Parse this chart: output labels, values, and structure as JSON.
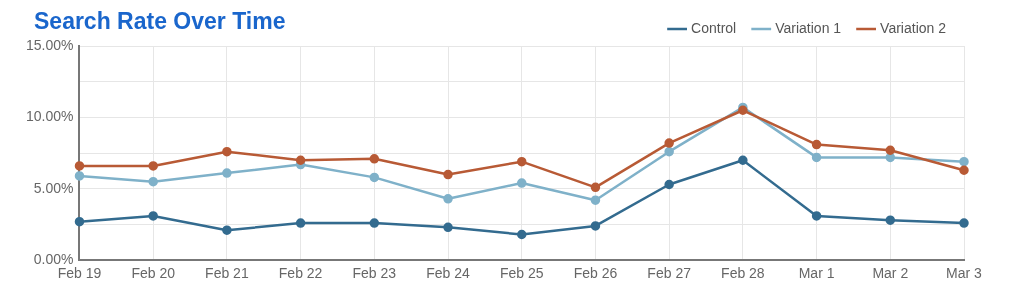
{
  "chart_data": {
    "type": "line",
    "title": "Search Rate Over Time",
    "categories": [
      "Feb 19",
      "Feb 20",
      "Feb 21",
      "Feb 22",
      "Feb 23",
      "Feb 24",
      "Feb 25",
      "Feb 26",
      "Feb 27",
      "Feb 28",
      "Mar 1",
      "Mar 2",
      "Mar 3"
    ],
    "series": [
      {
        "name": "Control",
        "color": "#336b8f",
        "values": [
          2.7,
          3.1,
          2.1,
          2.6,
          2.6,
          2.3,
          1.8,
          2.4,
          5.3,
          7.0,
          3.1,
          2.8,
          2.6
        ]
      },
      {
        "name": "Variation 1",
        "color": "#7fb1c9",
        "values": [
          5.9,
          5.5,
          6.1,
          6.7,
          5.8,
          4.3,
          5.4,
          4.2,
          7.6,
          10.7,
          7.2,
          7.2,
          6.9
        ]
      },
      {
        "name": "Variation 2",
        "color": "#b85a35",
        "values": [
          6.6,
          6.6,
          7.6,
          7.0,
          7.1,
          6.0,
          6.9,
          5.1,
          8.2,
          10.5,
          8.1,
          7.7,
          6.3
        ]
      }
    ],
    "ylim": [
      0,
      15
    ],
    "yticks": [
      {
        "value": 0,
        "label": "0.00%"
      },
      {
        "value": 2.5,
        "label": null
      },
      {
        "value": 5,
        "label": "5.00%"
      },
      {
        "value": 7.5,
        "label": null
      },
      {
        "value": 10,
        "label": "10.00%"
      },
      {
        "value": 12.5,
        "label": null
      },
      {
        "value": 15,
        "label": "15.00%"
      }
    ],
    "grid": true,
    "legend": "top right",
    "marker": "circle",
    "line_style": "solid"
  }
}
